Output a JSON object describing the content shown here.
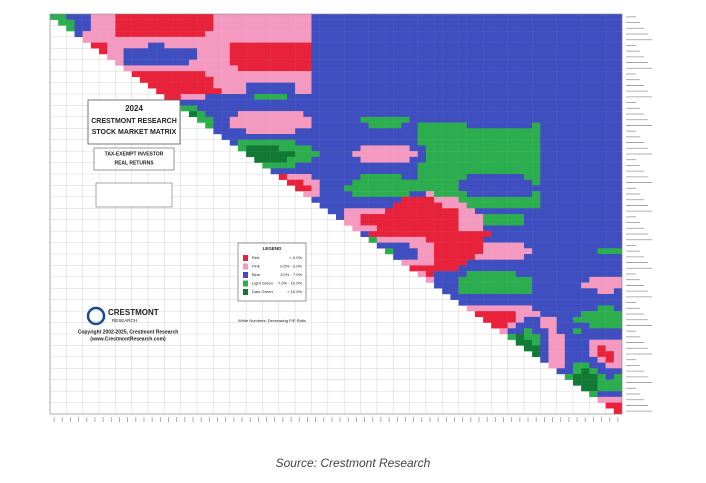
{
  "matrix": {
    "title_year": "2024",
    "title_line1": "CRESTMONT RESEARCH",
    "title_line2": "STOCK MARKET MATRIX",
    "investor": "TAX-EXEMPT INVESTOR",
    "returns": "REAL RETURNS"
  },
  "legend": {
    "title": "LEGEND",
    "items": [
      {
        "label": "Red",
        "range": "< 0.0%"
      },
      {
        "label": "Pink",
        "range": "0.0% - 3.0%"
      },
      {
        "label": "Blue",
        "range": "3.0% - 7.0%"
      },
      {
        "label": "Light Green",
        "range": "7.0% - 10.0%"
      },
      {
        "label": "Dark Green",
        "range": "> 10.0%"
      }
    ]
  },
  "note": "White Numbers: Decreasing P/E Ratio",
  "logo": {
    "name": "CRESTMONT",
    "sub": "RESEARCH"
  },
  "copyright": "Copyright 2002-2025, Crestmont Research",
  "website": "(www.CrestmontResearch.com)",
  "caption": "Source: Crestmont Research"
}
